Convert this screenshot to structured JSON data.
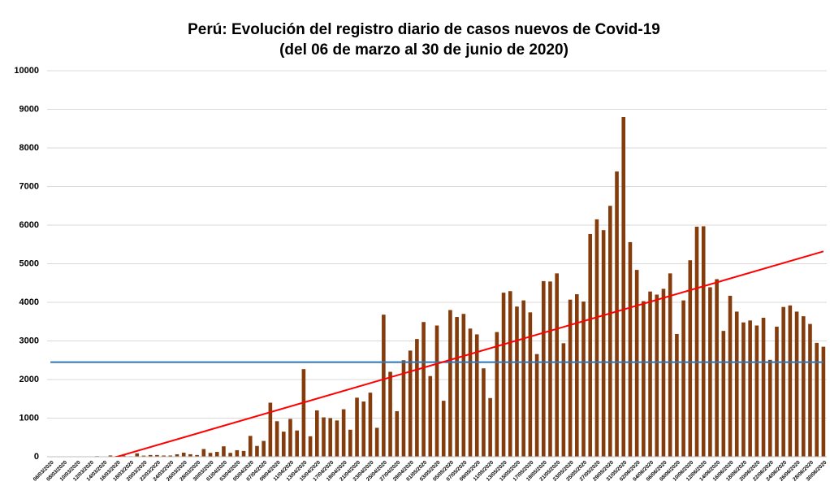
{
  "chart_data": {
    "type": "bar",
    "title": "Perú: Evolución del registro diario de casos nuevos de Covid-19",
    "subtitle": "(del 06 de marzo al 30 de junio de 2020)",
    "categories": [
      "06/03/2020",
      null,
      "08/03/2020",
      null,
      "10/03/2020",
      null,
      "12/03/2020",
      null,
      "14/03/2020",
      null,
      "16/03/2020",
      null,
      "18/03/2020",
      null,
      "20/03/2020",
      null,
      "22/03/2020",
      null,
      "24/03/2020",
      null,
      "26/03/2020",
      null,
      "28/03/2020",
      null,
      "30/03/2020",
      null,
      "01/04/2020",
      null,
      "03/04/2020",
      null,
      "05/04/2020",
      null,
      "07/04/2020",
      null,
      "09/04/2020",
      null,
      "11/04/2020",
      null,
      "13/04/2020",
      null,
      "15/04/2020",
      null,
      "17/04/2020",
      null,
      "19/04/2020",
      null,
      "21/04/2020",
      null,
      "23/04/2020",
      null,
      "25/04/2020",
      null,
      "27/04/2020",
      null,
      "29/04/2020",
      null,
      "01/05/2020",
      null,
      "03/05/2020",
      null,
      "05/05/2020",
      null,
      "07/05/2020",
      null,
      "09/05/2020",
      null,
      "11/05/2020",
      null,
      "13/05/2020",
      null,
      "15/05/2020",
      null,
      "17/05/2020",
      null,
      "19/05/2020",
      null,
      "21/05/2020",
      null,
      "23/05/2020",
      null,
      "25/05/2020",
      null,
      "27/05/2020",
      null,
      "29/05/2020",
      null,
      "31/05/2020",
      null,
      "02/06/2020",
      null,
      "04/06/2020",
      null,
      "06/06/2020",
      null,
      "08/06/2020",
      null,
      "10/06/2020",
      null,
      "12/06/2020",
      null,
      "14/06/2020",
      null,
      "16/06/2020",
      null,
      "18/06/2020",
      null,
      "20/06/2020",
      null,
      "22/06/2020",
      null,
      "24/06/2020",
      null,
      "26/06/2020",
      null,
      "28/06/2020",
      null,
      "30/06/2020"
    ],
    "values": [
      1,
      5,
      1,
      2,
      2,
      2,
      5,
      16,
      6,
      33,
      15,
      31,
      13,
      89,
      29,
      45,
      45,
      32,
      32,
      64,
      105,
      65,
      45,
      200,
      100,
      125,
      270,
      100,
      170,
      150,
      540,
      280,
      410,
      1400,
      920,
      650,
      980,
      680,
      2270,
      530,
      1200,
      1020,
      1000,
      940,
      1230,
      700,
      1530,
      1430,
      1660,
      750,
      3680,
      2200,
      1180,
      2500,
      2750,
      3050,
      3490,
      2090,
      3400,
      1450,
      3800,
      3620,
      3700,
      3320,
      3170,
      2290,
      1520,
      3230,
      4250,
      4290,
      3890,
      4050,
      3740,
      2660,
      4550,
      4540,
      4750,
      2940,
      4070,
      4210,
      4020,
      5770,
      6150,
      5870,
      6500,
      7390,
      8800,
      5560,
      4840,
      4030,
      4280,
      4200,
      4350,
      4750,
      3180,
      4050,
      5090,
      5960,
      5970,
      4390,
      4600,
      3260,
      4170,
      3760,
      3480,
      3530,
      3400,
      3600,
      2510,
      3370,
      3880,
      3920,
      3760,
      3640,
      3440,
      2950,
      2850
    ],
    "color": "#843c0c",
    "ylim": [
      0,
      10000
    ],
    "yticks": [
      0,
      1000,
      2000,
      3000,
      4000,
      5000,
      6000,
      7000,
      8000,
      9000,
      10000
    ],
    "grid": true,
    "mean_line": {
      "color": "#2e75b6",
      "value": 2450
    },
    "trend_line": {
      "color": "#ff0000",
      "values": [
        -502,
        5320
      ]
    }
  }
}
